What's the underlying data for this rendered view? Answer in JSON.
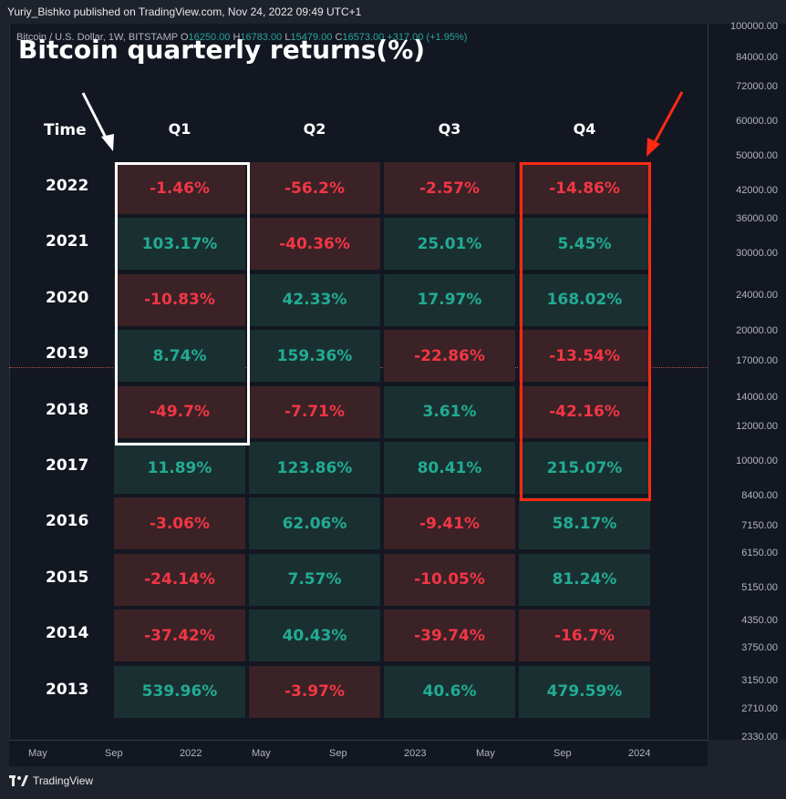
{
  "header": {
    "published": "Yuriy_Bishko published on TradingView.com, Nov 24, 2022 09:49 UTC+1"
  },
  "symbol_line": {
    "name": "Bitcoin / U.S. Dollar, 1W, BITSTAMP",
    "o_label": "O",
    "o_value": "16250.00",
    "h_label": "H",
    "h_value": "16783.00",
    "l_label": "L",
    "l_value": "15479.00",
    "c_label": "C",
    "c_value": "16573.00",
    "change": "+317.00 (+1.95%)"
  },
  "table": {
    "title": "Bitcoin quarterly returns(%)",
    "time_header": "Time",
    "quarters": [
      "Q1",
      "Q2",
      "Q3",
      "Q4"
    ],
    "rows": [
      {
        "year": "2022",
        "values": [
          "-1.46%",
          "-56.2%",
          "-2.57%",
          "-14.86%"
        ]
      },
      {
        "year": "2021",
        "values": [
          "103.17%",
          "-40.36%",
          "25.01%",
          "5.45%"
        ]
      },
      {
        "year": "2020",
        "values": [
          "-10.83%",
          "42.33%",
          "17.97%",
          "168.02%"
        ]
      },
      {
        "year": "2019",
        "values": [
          "8.74%",
          "159.36%",
          "-22.86%",
          "-13.54%"
        ]
      },
      {
        "year": "2018",
        "values": [
          "-49.7%",
          "-7.71%",
          "3.61%",
          "-42.16%"
        ]
      },
      {
        "year": "2017",
        "values": [
          "11.89%",
          "123.86%",
          "80.41%",
          "215.07%"
        ]
      },
      {
        "year": "2016",
        "values": [
          "-3.06%",
          "62.06%",
          "-9.41%",
          "58.17%"
        ]
      },
      {
        "year": "2015",
        "values": [
          "-24.14%",
          "7.57%",
          "-10.05%",
          "81.24%"
        ]
      },
      {
        "year": "2014",
        "values": [
          "-37.42%",
          "40.43%",
          "-39.74%",
          "-16.7%"
        ]
      },
      {
        "year": "2013",
        "values": [
          "539.96%",
          "-3.97%",
          "40.6%",
          "479.59%"
        ]
      }
    ]
  },
  "price_axis": [
    "100000.00",
    "84000.00",
    "72000.00",
    "60000.00",
    "50000.00",
    "42000.00",
    "36000.00",
    "30000.00",
    "24000.00",
    "20000.00",
    "17000.00",
    "14000.00",
    "12000.00",
    "10000.00",
    "8400.00",
    "7150.00",
    "6150.00",
    "5150.00",
    "4350.00",
    "3750.00",
    "3150.00",
    "2710.00",
    "2330.00"
  ],
  "time_axis": [
    "May",
    "Sep",
    "2022",
    "May",
    "Sep",
    "2023",
    "May",
    "Sep",
    "2024"
  ],
  "footer": {
    "brand": "TradingView"
  },
  "colors": {
    "negative_text": "#f23645",
    "positive_text": "#22ab94",
    "negative_bg": "#3a2226",
    "positive_bg": "#1a3030",
    "q1_box": "#ffffff",
    "q4_box": "#ff2a12"
  }
}
